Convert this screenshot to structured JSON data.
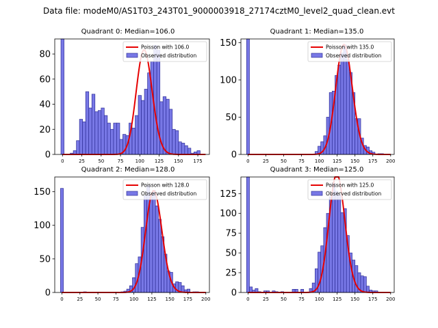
{
  "suptitle": "Data file: modeM0/AS1T03_243T01_9000003918_27174cztM0_level2_quad_clean.evt",
  "colors": {
    "bar_fill": "#7878e6",
    "bar_edge": "#2d2d96",
    "line": "#e60000"
  },
  "chart_data": [
    {
      "type": "bar",
      "title": "Quadrant 0: Median=106.0",
      "median": 106.0,
      "legend": [
        "Poisson with 106.0",
        "Observed distribution"
      ],
      "legend_position": "top-right",
      "xlim": [
        -10,
        190
      ],
      "ylim": [
        0,
        92
      ],
      "xticks": [
        0,
        25,
        50,
        75,
        100,
        125,
        150,
        175
      ],
      "yticks": [
        0,
        20,
        40,
        60,
        80
      ],
      "bin_width": 4,
      "bins": [
        {
          "x": 0,
          "y": 92
        },
        {
          "x": 12,
          "y": 1
        },
        {
          "x": 16,
          "y": 3
        },
        {
          "x": 20,
          "y": 11
        },
        {
          "x": 24,
          "y": 28
        },
        {
          "x": 28,
          "y": 26
        },
        {
          "x": 32,
          "y": 50
        },
        {
          "x": 36,
          "y": 37
        },
        {
          "x": 40,
          "y": 48
        },
        {
          "x": 44,
          "y": 34
        },
        {
          "x": 48,
          "y": 35
        },
        {
          "x": 52,
          "y": 37
        },
        {
          "x": 56,
          "y": 31
        },
        {
          "x": 60,
          "y": 25
        },
        {
          "x": 64,
          "y": 20
        },
        {
          "x": 68,
          "y": 25
        },
        {
          "x": 72,
          "y": 25
        },
        {
          "x": 76,
          "y": 12
        },
        {
          "x": 80,
          "y": 16
        },
        {
          "x": 84,
          "y": 15
        },
        {
          "x": 88,
          "y": 25
        },
        {
          "x": 92,
          "y": 21
        },
        {
          "x": 96,
          "y": 31
        },
        {
          "x": 100,
          "y": 47
        },
        {
          "x": 104,
          "y": 43
        },
        {
          "x": 108,
          "y": 52
        },
        {
          "x": 112,
          "y": 65
        },
        {
          "x": 116,
          "y": 74
        },
        {
          "x": 120,
          "y": 87
        },
        {
          "x": 124,
          "y": 83
        },
        {
          "x": 128,
          "y": 42
        },
        {
          "x": 132,
          "y": 46
        },
        {
          "x": 136,
          "y": 44
        },
        {
          "x": 140,
          "y": 36
        },
        {
          "x": 144,
          "y": 20
        },
        {
          "x": 148,
          "y": 19
        },
        {
          "x": 152,
          "y": 10
        },
        {
          "x": 156,
          "y": 9
        },
        {
          "x": 160,
          "y": 7
        },
        {
          "x": 164,
          "y": 5
        },
        {
          "x": 168,
          "y": 1
        },
        {
          "x": 172,
          "y": 2
        },
        {
          "x": 176,
          "y": 3
        }
      ],
      "poisson_scale": 2150
    },
    {
      "type": "bar",
      "title": "Quadrant 1: Median=135.0",
      "median": 135.0,
      "legend": [
        "Poisson with 135.0",
        "Observed distribution"
      ],
      "legend_position": "top-right",
      "xlim": [
        -10,
        205
      ],
      "ylim": [
        0,
        155
      ],
      "xticks": [
        0,
        25,
        50,
        75,
        100,
        125,
        150,
        175,
        200
      ],
      "yticks": [
        0,
        50,
        100,
        150
      ],
      "bin_width": 4,
      "bins": [
        {
          "x": 0,
          "y": 155
        },
        {
          "x": 96,
          "y": 4
        },
        {
          "x": 100,
          "y": 11
        },
        {
          "x": 104,
          "y": 17
        },
        {
          "x": 108,
          "y": 25
        },
        {
          "x": 112,
          "y": 50
        },
        {
          "x": 116,
          "y": 83
        },
        {
          "x": 120,
          "y": 85
        },
        {
          "x": 124,
          "y": 106
        },
        {
          "x": 128,
          "y": 120
        },
        {
          "x": 132,
          "y": 136
        },
        {
          "x": 136,
          "y": 147
        },
        {
          "x": 140,
          "y": 127
        },
        {
          "x": 144,
          "y": 110
        },
        {
          "x": 148,
          "y": 83
        },
        {
          "x": 152,
          "y": 48
        },
        {
          "x": 156,
          "y": 48
        },
        {
          "x": 160,
          "y": 22
        },
        {
          "x": 164,
          "y": 12
        },
        {
          "x": 168,
          "y": 10
        },
        {
          "x": 172,
          "y": 5
        },
        {
          "x": 176,
          "y": 3
        },
        {
          "x": 184,
          "y": 1
        },
        {
          "x": 188,
          "y": 1
        }
      ],
      "poisson_scale": 4300
    },
    {
      "type": "bar",
      "title": "Quadrant 2: Median=128.0",
      "median": 128.0,
      "legend": [
        "Poisson with 128.0",
        "Observed distribution"
      ],
      "legend_position": "top-right",
      "xlim": [
        -10,
        205
      ],
      "ylim": [
        0,
        172
      ],
      "xticks": [
        0,
        25,
        50,
        75,
        100,
        125,
        150,
        175,
        200
      ],
      "yticks": [
        0,
        50,
        100,
        150
      ],
      "bin_width": 4,
      "bins": [
        {
          "x": 0,
          "y": 155
        },
        {
          "x": 32,
          "y": 1
        },
        {
          "x": 84,
          "y": 1
        },
        {
          "x": 88,
          "y": 2
        },
        {
          "x": 92,
          "y": 5
        },
        {
          "x": 96,
          "y": 10
        },
        {
          "x": 100,
          "y": 22
        },
        {
          "x": 104,
          "y": 43
        },
        {
          "x": 108,
          "y": 53
        },
        {
          "x": 112,
          "y": 97
        },
        {
          "x": 116,
          "y": 144
        },
        {
          "x": 120,
          "y": 159
        },
        {
          "x": 124,
          "y": 145
        },
        {
          "x": 128,
          "y": 152
        },
        {
          "x": 132,
          "y": 129
        },
        {
          "x": 136,
          "y": 109
        },
        {
          "x": 140,
          "y": 83
        },
        {
          "x": 144,
          "y": 57
        },
        {
          "x": 148,
          "y": 32
        },
        {
          "x": 152,
          "y": 30
        },
        {
          "x": 156,
          "y": 13
        },
        {
          "x": 160,
          "y": 16
        },
        {
          "x": 164,
          "y": 15
        },
        {
          "x": 168,
          "y": 10
        },
        {
          "x": 172,
          "y": 4
        },
        {
          "x": 176,
          "y": 5
        },
        {
          "x": 184,
          "y": 1
        },
        {
          "x": 188,
          "y": 1
        }
      ],
      "poisson_scale": 4300
    },
    {
      "type": "bar",
      "title": "Quadrant 3: Median=125.0",
      "median": 125.0,
      "legend": [
        "Poisson with 125.0",
        "Observed distribution"
      ],
      "legend_position": "top-right",
      "xlim": [
        -10,
        205
      ],
      "ylim": [
        0,
        146
      ],
      "xticks": [
        0,
        25,
        50,
        75,
        100,
        125,
        150,
        175,
        200
      ],
      "yticks": [
        0,
        25,
        50,
        75,
        100,
        125
      ],
      "bin_width": 4,
      "bins": [
        {
          "x": 0,
          "y": 146
        },
        {
          "x": 4,
          "y": 7
        },
        {
          "x": 8,
          "y": 3
        },
        {
          "x": 12,
          "y": 5
        },
        {
          "x": 16,
          "y": 1
        },
        {
          "x": 24,
          "y": 2
        },
        {
          "x": 28,
          "y": 2
        },
        {
          "x": 36,
          "y": 2
        },
        {
          "x": 40,
          "y": 1
        },
        {
          "x": 48,
          "y": 1
        },
        {
          "x": 64,
          "y": 4
        },
        {
          "x": 68,
          "y": 4
        },
        {
          "x": 76,
          "y": 4
        },
        {
          "x": 88,
          "y": 5
        },
        {
          "x": 92,
          "y": 12
        },
        {
          "x": 96,
          "y": 30
        },
        {
          "x": 100,
          "y": 51
        },
        {
          "x": 104,
          "y": 59
        },
        {
          "x": 108,
          "y": 82
        },
        {
          "x": 112,
          "y": 100
        },
        {
          "x": 116,
          "y": 121
        },
        {
          "x": 120,
          "y": 138
        },
        {
          "x": 124,
          "y": 128
        },
        {
          "x": 128,
          "y": 123
        },
        {
          "x": 132,
          "y": 101
        },
        {
          "x": 136,
          "y": 106
        },
        {
          "x": 140,
          "y": 72
        },
        {
          "x": 144,
          "y": 50
        },
        {
          "x": 148,
          "y": 41
        },
        {
          "x": 152,
          "y": 34
        },
        {
          "x": 156,
          "y": 25
        },
        {
          "x": 160,
          "y": 21
        },
        {
          "x": 164,
          "y": 20
        },
        {
          "x": 168,
          "y": 8
        },
        {
          "x": 172,
          "y": 3
        },
        {
          "x": 176,
          "y": 2
        },
        {
          "x": 180,
          "y": 2
        }
      ],
      "poisson_scale": 4200
    }
  ]
}
